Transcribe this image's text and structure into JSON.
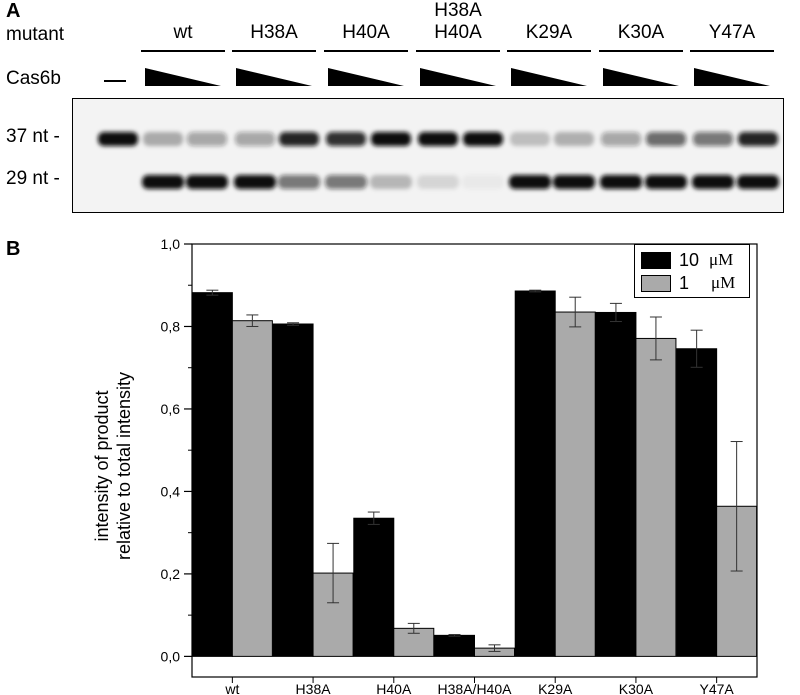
{
  "panel_a": {
    "label": "A",
    "mutant_row_label": "mutant",
    "cas6b_row_label": "Cas6b",
    "control_dash": "—",
    "mutants": [
      {
        "line1": "",
        "line2": "wt"
      },
      {
        "line1": "",
        "line2": "H38A"
      },
      {
        "line1": "",
        "line2": "H40A"
      },
      {
        "line1": "H38A",
        "line2": "H40A"
      },
      {
        "line1": "",
        "line2": "K29A"
      },
      {
        "line1": "",
        "line2": "K30A"
      },
      {
        "line1": "",
        "line2": "Y47A"
      }
    ],
    "band_labels": {
      "upper": "37 nt -",
      "lower": "29 nt -"
    }
  },
  "panel_b": {
    "label": "B"
  },
  "colors": {
    "series_10uM": "#000000",
    "series_1uM": "#aaaaaa",
    "gel_band": "#111111"
  },
  "chart_data": {
    "type": "bar",
    "categories": [
      "wt",
      "H38A",
      "H40A",
      "H38A/H40A",
      "K29A",
      "K30A",
      "Y47A"
    ],
    "series": [
      {
        "name": "10",
        "unit": "μM",
        "values": [
          0.882,
          0.806,
          0.335,
          0.051,
          0.886,
          0.834,
          0.746
        ],
        "errors": [
          0.006,
          0.003,
          0.015,
          0.002,
          0.002,
          0.022,
          0.045
        ]
      },
      {
        "name": "1",
        "unit": "μM",
        "values": [
          0.814,
          0.202,
          0.068,
          0.02,
          0.835,
          0.771,
          0.364
        ],
        "errors": [
          0.014,
          0.072,
          0.012,
          0.008,
          0.036,
          0.052,
          0.157
        ]
      }
    ],
    "title": "",
    "xlabel": "",
    "ylabel": "intensity of product relative to total intensity",
    "ylabel_lines": [
      "intensity of product",
      "relative to total intensity"
    ],
    "ylim": [
      -0.05,
      1.0
    ],
    "yticks": [
      0.0,
      0.2,
      0.4,
      0.6,
      0.8,
      1.0
    ],
    "ytick_labels": [
      "0,0",
      "0,2",
      "0,4",
      "0,6",
      "0,8",
      "1,0"
    ],
    "legend_position": "top-right",
    "grid": false
  }
}
